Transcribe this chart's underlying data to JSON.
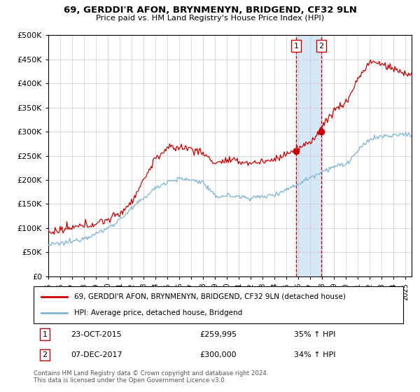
{
  "title": "69, GERDDI'R AFON, BRYNMENYN, BRIDGEND, CF32 9LN",
  "subtitle": "Price paid vs. HM Land Registry's House Price Index (HPI)",
  "ylim": [
    0,
    500000
  ],
  "yticks": [
    0,
    50000,
    100000,
    150000,
    200000,
    250000,
    300000,
    350000,
    400000,
    450000,
    500000
  ],
  "ytick_labels": [
    "£0",
    "£50K",
    "£100K",
    "£150K",
    "£200K",
    "£250K",
    "£300K",
    "£350K",
    "£400K",
    "£450K",
    "£500K"
  ],
  "hpi_color": "#7fb3d3",
  "price_color": "#cc0000",
  "marker1_year": 2015.8,
  "marker2_year": 2017.92,
  "transaction1_date": "23-OCT-2015",
  "transaction1_price": 259995,
  "transaction1_hpi_text": "35% ↑ HPI",
  "transaction2_date": "07-DEC-2017",
  "transaction2_price": 300000,
  "transaction2_hpi_text": "34% ↑ HPI",
  "legend_label1": "69, GERDDI'R AFON, BRYNMENYN, BRIDGEND, CF32 9LN (detached house)",
  "legend_label2": "HPI: Average price, detached house, Bridgend",
  "footnote1": "Contains HM Land Registry data © Crown copyright and database right 2024.",
  "footnote2": "This data is licensed under the Open Government Licence v3.0.",
  "shade_color": "#d6e8f5",
  "hpi_waypoints_x": [
    1995,
    1996,
    1997,
    1998,
    1999,
    2000,
    2001,
    2002,
    2003,
    2004,
    2005,
    2006,
    2007,
    2008,
    2009,
    2010,
    2011,
    2012,
    2013,
    2014,
    2015,
    2016,
    2017,
    2018,
    2019,
    2020,
    2021,
    2022,
    2023,
    2024,
    2025
  ],
  "hpi_waypoints_y": [
    65000,
    68000,
    72000,
    80000,
    88000,
    100000,
    118000,
    140000,
    162000,
    183000,
    197000,
    202000,
    200000,
    195000,
    165000,
    168000,
    165000,
    163000,
    165000,
    170000,
    180000,
    192000,
    205000,
    218000,
    228000,
    232000,
    260000,
    285000,
    290000,
    292000,
    295000
  ],
  "price_waypoints_x": [
    1995,
    1996,
    1997,
    1998,
    1999,
    2000,
    2001,
    2002,
    2003,
    2004,
    2005,
    2006,
    2007,
    2008,
    2009,
    2010,
    2011,
    2012,
    2013,
    2014,
    2015,
    2016,
    2017,
    2018,
    2019,
    2020,
    2021,
    2022,
    2023,
    2024,
    2025
  ],
  "price_waypoints_y": [
    90000,
    95000,
    100000,
    105000,
    110000,
    118000,
    130000,
    155000,
    200000,
    245000,
    265000,
    268000,
    265000,
    255000,
    235000,
    240000,
    238000,
    235000,
    238000,
    242000,
    255000,
    265000,
    278000,
    310000,
    345000,
    360000,
    410000,
    445000,
    440000,
    430000,
    420000
  ]
}
